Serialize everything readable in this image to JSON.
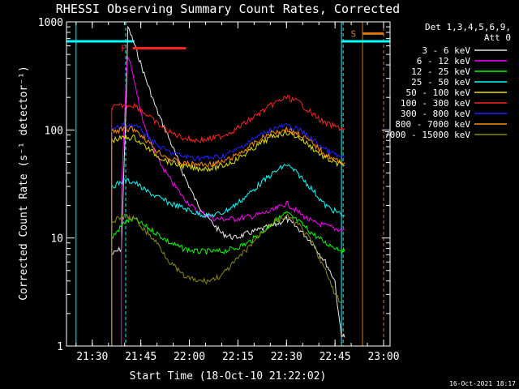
{
  "chart_data": {
    "type": "line",
    "title": "RHESSI Observing Summary Count Rates, Corrected",
    "xlabel": "Start Time (18-Oct-10 21:22:02)",
    "ylabel": "Corrected Count Rate (s⁻¹ detector⁻¹)",
    "x_ticks": [
      "21:30",
      "21:45",
      "22:00",
      "22:15",
      "22:30",
      "22:45",
      "23:00"
    ],
    "y_ticks": [
      "1",
      "10",
      "100",
      "1000"
    ],
    "y_scale": "log",
    "ylim": [
      1,
      1000
    ],
    "xlim": [
      "21:22:02",
      "23:02:00"
    ],
    "legend_header": [
      "Det 1,3,4,5,6,9,",
      "Att 0"
    ],
    "legend_placement": "right",
    "annotations": {
      "flare_flag": "F",
      "saa_flag": "S"
    },
    "flag_bars": [
      {
        "label": "F",
        "color": "#ff2020",
        "x_start": "21:42:30",
        "x_end": "21:59:00",
        "y": 570
      },
      {
        "label": "S",
        "color": "#e07800",
        "x_start": "22:53:30",
        "x_end": "23:00:00",
        "y": 780
      }
    ],
    "cyan_bars": [
      {
        "x_start": "21:22:02",
        "x_end": "21:43:00",
        "y": 660
      },
      {
        "x_start": "22:47:00",
        "x_end": "23:02:00",
        "y": 660
      }
    ],
    "vlines": [
      {
        "x": "21:25:00",
        "color": "#00ffff",
        "style": "solid"
      },
      {
        "x": "21:40:20",
        "color": "#00ffff",
        "style": "dashed"
      },
      {
        "x": "22:47:00",
        "color": "#00ffff",
        "style": "solid"
      },
      {
        "x": "22:47:30",
        "color": "#00ffff",
        "style": "dashed"
      },
      {
        "x": "22:53:30",
        "color": "#e07800",
        "style": "solid"
      },
      {
        "x": "23:00:00",
        "color": "#e07800",
        "style": "dashed"
      }
    ],
    "series": [
      {
        "name": "3 - 6 keV",
        "color": "#e8e8e8",
        "points": [
          [
            "21:36:00",
            7
          ],
          [
            "21:39:00",
            8
          ],
          [
            "21:40:30",
            200
          ],
          [
            "21:41:00",
            900
          ],
          [
            "21:43:00",
            620
          ],
          [
            "21:46:00",
            330
          ],
          [
            "21:50:00",
            150
          ],
          [
            "21:54:00",
            80
          ],
          [
            "21:58:00",
            40
          ],
          [
            "22:02:00",
            22
          ],
          [
            "22:06:00",
            15
          ],
          [
            "22:10:00",
            11
          ],
          [
            "22:14:00",
            10
          ],
          [
            "22:18:00",
            11
          ],
          [
            "22:22:00",
            12
          ],
          [
            "22:26:00",
            13
          ],
          [
            "22:30:00",
            15
          ],
          [
            "22:34:00",
            12
          ],
          [
            "22:38:00",
            9
          ],
          [
            "22:42:00",
            6
          ],
          [
            "22:45:00",
            4
          ],
          [
            "22:46:00",
            2
          ],
          [
            "22:47:00",
            1.3
          ],
          [
            "22:48:00",
            1.2
          ]
        ]
      },
      {
        "name": "6 - 12 keV",
        "color": "#ff00ff",
        "points": [
          [
            "21:39:00",
            25
          ],
          [
            "21:40:30",
            300
          ],
          [
            "21:41:00",
            500
          ],
          [
            "21:43:00",
            280
          ],
          [
            "21:46:00",
            110
          ],
          [
            "21:50:00",
            55
          ],
          [
            "21:54:00",
            35
          ],
          [
            "21:58:00",
            24
          ],
          [
            "22:02:00",
            18
          ],
          [
            "22:08:00",
            15
          ],
          [
            "22:14:00",
            15
          ],
          [
            "22:20:00",
            16
          ],
          [
            "22:26:00",
            18
          ],
          [
            "22:30:00",
            21
          ],
          [
            "22:34:00",
            17
          ],
          [
            "22:38:00",
            14
          ],
          [
            "22:42:00",
            13
          ],
          [
            "22:46:00",
            12
          ],
          [
            "22:48:00",
            12
          ]
        ]
      },
      {
        "name": "12 - 25 keV",
        "color": "#00ff00",
        "points": [
          [
            "21:36:00",
            10
          ],
          [
            "21:40:00",
            14
          ],
          [
            "21:43:00",
            15
          ],
          [
            "21:46:00",
            13
          ],
          [
            "21:50:00",
            11
          ],
          [
            "21:54:00",
            9
          ],
          [
            "21:58:00",
            8
          ],
          [
            "22:02:00",
            7.5
          ],
          [
            "22:06:00",
            7.5
          ],
          [
            "22:10:00",
            7.5
          ],
          [
            "22:14:00",
            8
          ],
          [
            "22:18:00",
            9
          ],
          [
            "22:22:00",
            11
          ],
          [
            "22:26:00",
            14
          ],
          [
            "22:30:00",
            17
          ],
          [
            "22:34:00",
            14
          ],
          [
            "22:38:00",
            11
          ],
          [
            "22:42:00",
            9
          ],
          [
            "22:46:00",
            8
          ],
          [
            "22:48:00",
            7.5
          ]
        ]
      },
      {
        "name": "25 - 50 keV",
        "color": "#00ffff",
        "points": [
          [
            "21:36:00",
            30
          ],
          [
            "21:40:00",
            34
          ],
          [
            "21:43:00",
            33
          ],
          [
            "21:46:00",
            28
          ],
          [
            "21:50:00",
            24
          ],
          [
            "21:54:00",
            21
          ],
          [
            "21:58:00",
            19
          ],
          [
            "22:02:00",
            17
          ],
          [
            "22:06:00",
            16
          ],
          [
            "22:10:00",
            17
          ],
          [
            "22:14:00",
            20
          ],
          [
            "22:18:00",
            25
          ],
          [
            "22:22:00",
            32
          ],
          [
            "22:26:00",
            40
          ],
          [
            "22:30:00",
            48
          ],
          [
            "22:34:00",
            38
          ],
          [
            "22:38:00",
            28
          ],
          [
            "22:42:00",
            20
          ],
          [
            "22:46:00",
            17
          ],
          [
            "22:48:00",
            16
          ]
        ]
      },
      {
        "name": "50 - 100 keV",
        "color": "#e0e000",
        "points": [
          [
            "21:36:00",
            80
          ],
          [
            "21:40:00",
            85
          ],
          [
            "21:43:00",
            85
          ],
          [
            "21:46:00",
            72
          ],
          [
            "21:50:00",
            58
          ],
          [
            "21:54:00",
            50
          ],
          [
            "21:58:00",
            46
          ],
          [
            "22:02:00",
            44
          ],
          [
            "22:06:00",
            44
          ],
          [
            "22:10:00",
            46
          ],
          [
            "22:14:00",
            52
          ],
          [
            "22:18:00",
            62
          ],
          [
            "22:22:00",
            75
          ],
          [
            "22:26:00",
            88
          ],
          [
            "22:30:00",
            95
          ],
          [
            "22:34:00",
            85
          ],
          [
            "22:38:00",
            68
          ],
          [
            "22:42:00",
            55
          ],
          [
            "22:46:00",
            48
          ],
          [
            "22:48:00",
            47
          ]
        ]
      },
      {
        "name": "100 - 300 keV",
        "color": "#ff2020",
        "points": [
          [
            "21:36:00",
            160
          ],
          [
            "21:40:00",
            170
          ],
          [
            "21:43:00",
            170
          ],
          [
            "21:46:00",
            145
          ],
          [
            "21:50:00",
            115
          ],
          [
            "21:54:00",
            95
          ],
          [
            "21:58:00",
            85
          ],
          [
            "22:02:00",
            80
          ],
          [
            "22:06:00",
            82
          ],
          [
            "22:10:00",
            88
          ],
          [
            "22:14:00",
            100
          ],
          [
            "22:18:00",
            120
          ],
          [
            "22:22:00",
            145
          ],
          [
            "22:26:00",
            175
          ],
          [
            "22:30:00",
            200
          ],
          [
            "22:34:00",
            180
          ],
          [
            "22:38:00",
            140
          ],
          [
            "22:42:00",
            115
          ],
          [
            "22:46:00",
            105
          ],
          [
            "22:48:00",
            103
          ]
        ]
      },
      {
        "name": "300 - 800 keV",
        "color": "#2020ff",
        "points": [
          [
            "21:36:00",
            100
          ],
          [
            "21:40:00",
            110
          ],
          [
            "21:43:00",
            110
          ],
          [
            "21:46:00",
            95
          ],
          [
            "21:50:00",
            72
          ],
          [
            "21:54:00",
            62
          ],
          [
            "21:58:00",
            57
          ],
          [
            "22:02:00",
            55
          ],
          [
            "22:06:00",
            55
          ],
          [
            "22:10:00",
            57
          ],
          [
            "22:14:00",
            64
          ],
          [
            "22:18:00",
            76
          ],
          [
            "22:22:00",
            90
          ],
          [
            "22:26:00",
            103
          ],
          [
            "22:30:00",
            110
          ],
          [
            "22:34:00",
            100
          ],
          [
            "22:38:00",
            82
          ],
          [
            "22:42:00",
            66
          ],
          [
            "22:46:00",
            57
          ],
          [
            "22:48:00",
            56
          ]
        ]
      },
      {
        "name": "800 - 7000 keV",
        "color": "#ff8c00",
        "points": [
          [
            "21:36:00",
            95
          ],
          [
            "21:40:00",
            102
          ],
          [
            "21:43:00",
            102
          ],
          [
            "21:46:00",
            85
          ],
          [
            "21:50:00",
            64
          ],
          [
            "21:54:00",
            54
          ],
          [
            "21:58:00",
            49
          ],
          [
            "22:02:00",
            48
          ],
          [
            "22:06:00",
            48
          ],
          [
            "22:10:00",
            50
          ],
          [
            "22:14:00",
            57
          ],
          [
            "22:18:00",
            68
          ],
          [
            "22:22:00",
            82
          ],
          [
            "22:26:00",
            95
          ],
          [
            "22:30:00",
            102
          ],
          [
            "22:34:00",
            92
          ],
          [
            "22:38:00",
            75
          ],
          [
            "22:42:00",
            60
          ],
          [
            "22:46:00",
            51
          ],
          [
            "22:48:00",
            50
          ]
        ]
      },
      {
        "name": "7000 - 15000 keV",
        "color": "#8b8b00",
        "points": [
          [
            "21:36:00",
            14
          ],
          [
            "21:40:00",
            16
          ],
          [
            "21:43:00",
            15
          ],
          [
            "21:46:00",
            12
          ],
          [
            "21:50:00",
            9
          ],
          [
            "21:54:00",
            6
          ],
          [
            "21:58:00",
            4.5
          ],
          [
            "22:02:00",
            4
          ],
          [
            "22:06:00",
            4
          ],
          [
            "22:10:00",
            4.5
          ],
          [
            "22:14:00",
            6
          ],
          [
            "22:18:00",
            8
          ],
          [
            "22:22:00",
            11
          ],
          [
            "22:26:00",
            14
          ],
          [
            "22:30:00",
            16
          ],
          [
            "22:34:00",
            13
          ],
          [
            "22:38:00",
            9
          ],
          [
            "22:42:00",
            5
          ],
          [
            "22:45:00",
            3
          ],
          [
            "22:47:00",
            2.5
          ]
        ]
      }
    ]
  },
  "footer": {
    "timestamp": "16-Oct-2021 18:17"
  }
}
